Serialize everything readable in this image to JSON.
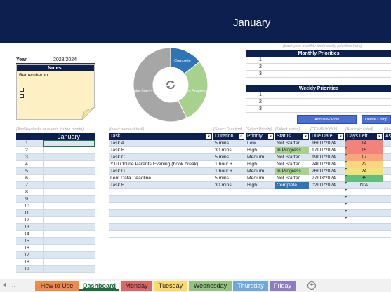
{
  "banner": {
    "title": "January"
  },
  "year": {
    "label": "Year",
    "value": "2023/2024"
  },
  "notes": {
    "header": "Notes:",
    "text": "Remember to..."
  },
  "priorities": {
    "hint": "(track your monthly and weekly priorities here)",
    "monthly_title": "Monthly Priorities",
    "weekly_title": "Weekly Priorities",
    "monthly_rows": [
      "1",
      "2",
      "3"
    ],
    "weekly_rows": [
      "1",
      "2",
      "3"
    ]
  },
  "chart_data": {
    "type": "pie",
    "categories": [
      "Complete",
      "In Progress",
      "Not Started"
    ],
    "values": [
      1,
      2,
      4
    ],
    "colors": [
      "#2f75b5",
      "#a9d18e",
      "#a6a6a6"
    ],
    "center_icon": "refresh-icon"
  },
  "buttons": {
    "add_row": "Add New Row",
    "delete": "Delete Comp"
  },
  "calendar": {
    "hint": "(Add key tasks or events for the month)",
    "header": "January",
    "days": [
      "1",
      "2",
      "3",
      "4",
      "5",
      "6",
      "7",
      "8",
      "9",
      "10",
      "11",
      "12",
      "13",
      "14",
      "15",
      "16",
      "17",
      "18",
      "19"
    ]
  },
  "tasks": {
    "hints": [
      "(Insert name of task)",
      "(Select Duration)",
      "(Select Priority)",
      "(Select status)",
      "(DD/MM/YYYY)",
      "(Autocalculated)",
      "(Inser"
    ],
    "headers": [
      "Task",
      "Duration",
      "Priority",
      "Status",
      "Due Date",
      "Days Left",
      "Ass"
    ],
    "rows": [
      {
        "task": "Task A",
        "duration": "5 mins",
        "priority": "Low",
        "status": "Not Started",
        "due": "16/01/2024",
        "days_left": "14",
        "days_color": "#f4817a"
      },
      {
        "task": "Task B",
        "duration": "30 mins",
        "priority": "High",
        "status": "In Progress",
        "due": "17/01/2024",
        "days_left": "15",
        "days_color": "#f4817a"
      },
      {
        "task": "Task C",
        "duration": "5 mins",
        "priority": "Medium",
        "status": "Not Started",
        "due": "19/01/2024",
        "days_left": "17",
        "days_color": "#f7a77c"
      },
      {
        "task": "Y10 Online Parents Evening (book break)",
        "duration": "1 hour +",
        "priority": "High",
        "status": "Not Started",
        "due": "24/01/2024",
        "days_left": "22",
        "days_color": "#fbd47f"
      },
      {
        "task": "Task D",
        "duration": "1 hour +",
        "priority": "Medium",
        "status": "In Progress",
        "due": "26/01/2024",
        "days_left": "24",
        "days_color": "#f2e27d"
      },
      {
        "task": "Lent Data Deadline",
        "duration": "5 mins",
        "priority": "Medium",
        "status": "Not Started",
        "due": "27/03/2024",
        "days_left": "85",
        "days_color": "#63be7b"
      },
      {
        "task": "Task E",
        "duration": "30 mins",
        "priority": "High",
        "status": "Complete",
        "due": "02/01/2024",
        "days_left": "N/A",
        "days_color": ""
      }
    ]
  },
  "tabs": [
    {
      "label": "How to Use",
      "color": "#f08a4b"
    },
    {
      "label": "Dashboard",
      "color": "#ffffff"
    },
    {
      "label": "Monday",
      "color": "#e06666"
    },
    {
      "label": "Tuesday",
      "color": "#ffd966"
    },
    {
      "label": "Wednesday",
      "color": "#93c47d"
    },
    {
      "label": "Thursday",
      "color": "#6fa8dc"
    },
    {
      "label": "Friday",
      "color": "#8e7cc3"
    }
  ],
  "add_sheet_icon": "plus-circle-icon"
}
